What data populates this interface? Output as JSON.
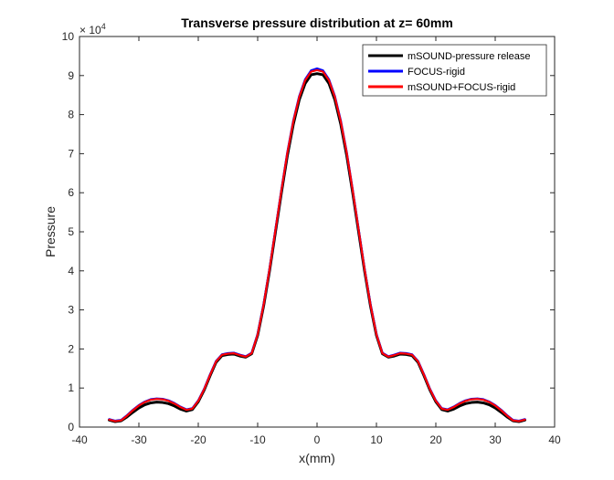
{
  "chart_data": {
    "type": "line",
    "title": "Transverse pressure distribution at z= 60mm",
    "xlabel": "x(mm)",
    "ylabel": "Pressure",
    "xlim": [
      -40,
      40
    ],
    "ylim": [
      0,
      100000
    ],
    "x_ticks": [
      "-40",
      "-30",
      "-20",
      "-10",
      "0",
      "10",
      "20",
      "30",
      "40"
    ],
    "y_ticks": [
      "0",
      "1",
      "2",
      "3",
      "4",
      "5",
      "6",
      "7",
      "8",
      "9",
      "10"
    ],
    "y_exponent_base": "× 10",
    "y_exponent_power": "4",
    "grid": false,
    "legend_position": "top-right",
    "x": [
      -35,
      -34,
      -33,
      -32,
      -31,
      -30,
      -29,
      -28,
      -27,
      -26,
      -25,
      -24,
      -23,
      -22,
      -21,
      -20,
      -19,
      -18,
      -17,
      -16,
      -15,
      -14,
      -13,
      -12,
      -11,
      -10,
      -9,
      -8,
      -7,
      -6,
      -5,
      -4,
      -3,
      -2,
      -1,
      0,
      1,
      2,
      3,
      4,
      5,
      6,
      7,
      8,
      9,
      10,
      11,
      12,
      13,
      14,
      15,
      16,
      17,
      18,
      19,
      20,
      21,
      22,
      23,
      24,
      25,
      26,
      27,
      28,
      29,
      30,
      31,
      32,
      33,
      34,
      35
    ],
    "series": [
      {
        "name": "mSOUND-pressure release",
        "color": "#000000",
        "values": [
          1800,
          1400,
          1600,
          2600,
          3800,
          4900,
          5700,
          6200,
          6400,
          6300,
          6000,
          5400,
          4600,
          4100,
          4500,
          6500,
          9500,
          13200,
          16600,
          18300,
          18600,
          18700,
          18200,
          17900,
          18800,
          23500,
          31000,
          40000,
          50000,
          60000,
          69500,
          77500,
          83800,
          88000,
          90200,
          90500,
          90200,
          88000,
          83800,
          77500,
          69500,
          60000,
          50000,
          40000,
          31000,
          23500,
          18800,
          17900,
          18200,
          18700,
          18600,
          18300,
          16600,
          13200,
          9500,
          6500,
          4500,
          4100,
          4600,
          5400,
          6000,
          6300,
          6400,
          6200,
          5700,
          4900,
          3800,
          2600,
          1600,
          1400,
          1800
        ]
      },
      {
        "name": "FOCUS-rigid",
        "color": "#0000ff",
        "values": [
          2000,
          1600,
          1800,
          3000,
          4400,
          5600,
          6500,
          7100,
          7300,
          7200,
          6800,
          6100,
          5200,
          4500,
          4800,
          6800,
          9800,
          13500,
          16900,
          18600,
          18900,
          19000,
          18500,
          18100,
          19000,
          23800,
          31400,
          40500,
          50600,
          60700,
          70300,
          78400,
          84700,
          89000,
          91300,
          91800,
          91300,
          89000,
          84700,
          78400,
          70300,
          60700,
          50600,
          40500,
          31400,
          23800,
          19000,
          18100,
          18500,
          19000,
          18900,
          18600,
          16900,
          13500,
          9800,
          6800,
          4800,
          4500,
          5200,
          6100,
          6800,
          7200,
          7300,
          7100,
          6500,
          5600,
          4400,
          3000,
          1800,
          1600,
          2000
        ]
      },
      {
        "name": "mSOUND+FOCUS-rigid",
        "color": "#ff0000",
        "values": [
          1900,
          1500,
          1700,
          2900,
          4300,
          5500,
          6400,
          7000,
          7200,
          7100,
          6700,
          6000,
          5100,
          4400,
          4700,
          6700,
          9700,
          13400,
          16800,
          18500,
          18800,
          18900,
          18400,
          18000,
          18900,
          23700,
          31300,
          40400,
          50500,
          60600,
          70200,
          78200,
          84500,
          88800,
          91000,
          91400,
          91000,
          88800,
          84500,
          78200,
          70200,
          60600,
          50500,
          40400,
          31300,
          23700,
          18900,
          18000,
          18400,
          18900,
          18800,
          18500,
          16800,
          13400,
          9700,
          6700,
          4700,
          4400,
          5100,
          6000,
          6700,
          7100,
          7200,
          7000,
          6400,
          5500,
          4300,
          2900,
          1700,
          1500,
          1900
        ]
      }
    ]
  }
}
